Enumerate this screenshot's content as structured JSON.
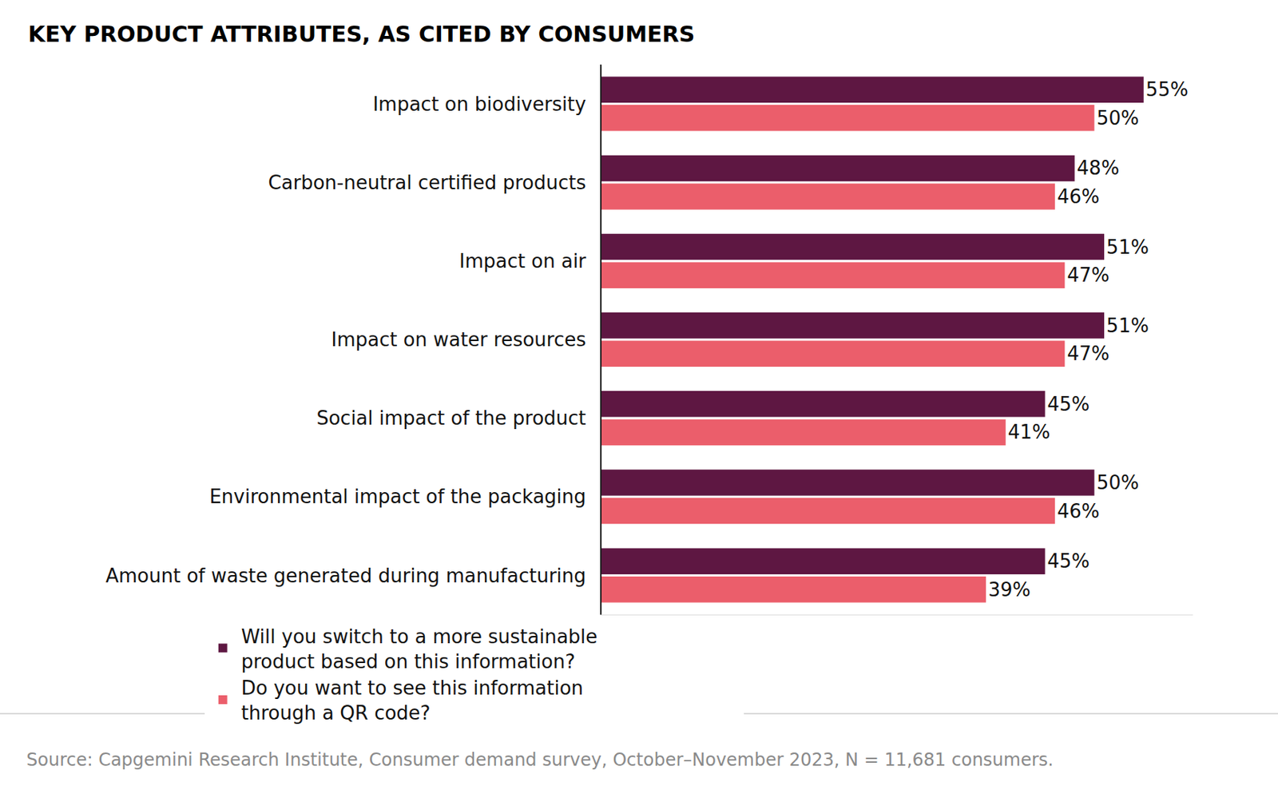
{
  "chart_data": {
    "type": "bar",
    "orientation": "horizontal",
    "title": "KEY PRODUCT ATTRIBUTES, AS CITED BY CONSUMERS",
    "categories": [
      "Impact on biodiversity",
      "Carbon-neutral certified products",
      "Impact on air",
      "Impact on water resources",
      "Social impact of the product",
      "Environmental impact of the packaging",
      "Amount of waste generated during manufacturing"
    ],
    "series": [
      {
        "name": "Will you switch to a more sustainable product based on this information?",
        "color": "#5e1742",
        "values": [
          55,
          48,
          51,
          51,
          45,
          50,
          45
        ],
        "value_labels": [
          "55%",
          "48%",
          "51%",
          "51%",
          "45%",
          "50%",
          "45%"
        ]
      },
      {
        "name": "Do you want to see this information through a QR code?",
        "color": "#eb5e6b",
        "values": [
          50,
          46,
          47,
          47,
          41,
          46,
          39
        ],
        "value_labels": [
          "50%",
          "46%",
          "47%",
          "47%",
          "41%",
          "46%",
          "39%"
        ]
      }
    ],
    "xlim": [
      0,
      60
    ],
    "data_labels": true,
    "tick_labels": "y",
    "grid": false,
    "legend": "bottom",
    "source": "Source: Capgemini Research Institute, Consumer demand survey, October–November 2023, N = 11,681 consumers."
  }
}
